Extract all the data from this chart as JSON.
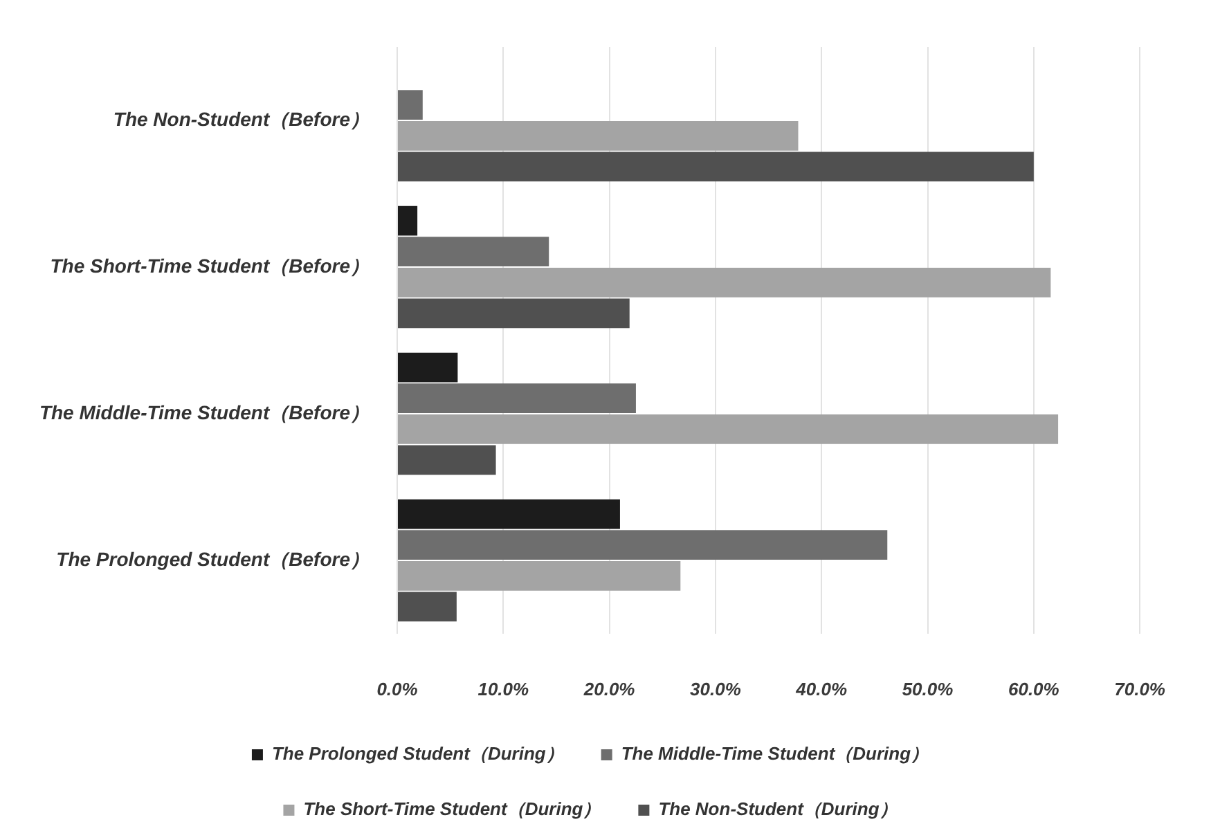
{
  "chart_data": {
    "type": "bar",
    "orientation": "horizontal",
    "categories": [
      "The Non-Student（Before）",
      "The Short-Time Student（Before）",
      "The Middle-Time Student（Before）",
      "The Prolonged Student（Before）"
    ],
    "series": [
      {
        "name": "The Prolonged Student（During）",
        "color": "#1c1c1c",
        "values": [
          0,
          1.9,
          5.7,
          21.0
        ]
      },
      {
        "name": "The Middle-Time Student（During）",
        "color": "#6e6e6e",
        "values": [
          2.4,
          14.3,
          22.5,
          46.2
        ]
      },
      {
        "name": "The Short-Time Student（During）",
        "color": "#a4a4a4",
        "values": [
          37.8,
          61.6,
          62.3,
          26.7
        ]
      },
      {
        "name": "The Non-Student（During）",
        "color": "#505050",
        "values": [
          60.0,
          21.9,
          9.3,
          5.6
        ]
      }
    ],
    "xlim": [
      0,
      70
    ],
    "xticks": [
      {
        "value": 0,
        "label": "0.0%"
      },
      {
        "value": 10,
        "label": "10.0%"
      },
      {
        "value": 20,
        "label": "20.0%"
      },
      {
        "value": 30,
        "label": "30.0%"
      },
      {
        "value": 40,
        "label": "40.0%"
      },
      {
        "value": 50,
        "label": "50.0%"
      },
      {
        "value": 60,
        "label": "60.0%"
      },
      {
        "value": 70,
        "label": "70.0%"
      }
    ],
    "grid": "x",
    "legend": "bottom"
  }
}
